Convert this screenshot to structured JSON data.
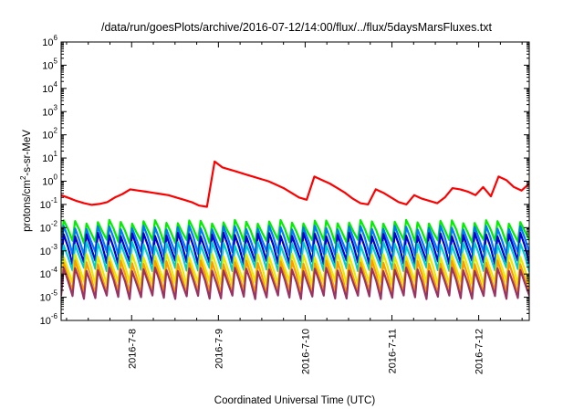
{
  "chart_data": {
    "type": "line",
    "title": "/data/run/goesPlots/archive/2016-07-12/14:00/flux/../flux/5daysMarsFluxes.txt",
    "xlabel": "Coordinated Universal Time (UTC)",
    "ylabel": {
      "pre": "protons/cm",
      "sup": "2",
      "post": "-s-sr-MeV"
    },
    "y_scale": "log",
    "ylim": [
      1e-06,
      1000000.0
    ],
    "y_ticks": [
      {
        "value": 1e-06,
        "base": "10",
        "exp": "-6"
      },
      {
        "value": 1e-05,
        "base": "10",
        "exp": "-5"
      },
      {
        "value": 0.0001,
        "base": "10",
        "exp": "-4"
      },
      {
        "value": 0.001,
        "base": "10",
        "exp": "-3"
      },
      {
        "value": 0.01,
        "base": "10",
        "exp": "-2"
      },
      {
        "value": 0.1,
        "base": "10",
        "exp": "-1"
      },
      {
        "value": 1.0,
        "base": "10",
        "exp": "0"
      },
      {
        "value": 10.0,
        "base": "10",
        "exp": "1"
      },
      {
        "value": 100.0,
        "base": "10",
        "exp": "2"
      },
      {
        "value": 1000.0,
        "base": "10",
        "exp": "3"
      },
      {
        "value": 10000.0,
        "base": "10",
        "exp": "4"
      },
      {
        "value": 100000.0,
        "base": "10",
        "exp": "5"
      },
      {
        "value": 1000000.0,
        "base": "10",
        "exp": "6"
      }
    ],
    "x_range_days": [
      "2016-07-07 04:30",
      "2016-07-12 14:00"
    ],
    "x_ticks": [
      "2016-7-8",
      "2016-7-9",
      "2016-7-10",
      "2016-7-11",
      "2016-7-12"
    ],
    "grid": false,
    "series": [
      {
        "color": "#ff0000",
        "values_log10": [
          -0.6,
          -0.72,
          -0.85,
          -0.95,
          -1.02,
          -0.98,
          -0.9,
          -0.7,
          -0.55,
          -0.35,
          -0.4,
          -0.45,
          -0.5,
          -0.55,
          -0.6,
          -0.7,
          -0.8,
          -0.9,
          -1.05,
          -1.1,
          0.85,
          0.6,
          0.5,
          0.4,
          0.3,
          0.2,
          0.1,
          0.0,
          -0.15,
          -0.3,
          -0.5,
          -0.7,
          -0.8,
          0.2,
          0.05,
          -0.1,
          -0.3,
          -0.5,
          -0.75,
          -0.95,
          -1.0,
          -0.35,
          -0.5,
          -0.7,
          -0.9,
          -1.0,
          -0.6,
          -0.75,
          -0.85,
          -0.95,
          -0.7,
          -0.3,
          -0.35,
          -0.45,
          -0.6,
          -0.25,
          -0.65,
          0.2,
          0.05,
          -0.25,
          -0.4,
          -0.1
        ]
      },
      {
        "color": "#00ee00",
        "sawtooth": {
          "upper": -1.75,
          "lower": -2.6,
          "teeth": 41
        }
      },
      {
        "color": "#0077ff",
        "sawtooth": {
          "upper": -2.0,
          "lower": -3.1,
          "teeth": 41
        }
      },
      {
        "color": "#0000cc",
        "sawtooth": {
          "upper": -2.3,
          "lower": -3.5,
          "teeth": 41
        }
      },
      {
        "color": "#00cccc",
        "sawtooth": {
          "upper": -2.7,
          "lower": -3.8,
          "teeth": 41
        }
      },
      {
        "color": "#e8e800",
        "sawtooth": {
          "upper": -3.2,
          "lower": -4.4,
          "teeth": 41
        }
      },
      {
        "color": "#ff9900",
        "sawtooth": {
          "upper": -3.5,
          "lower": -4.8,
          "teeth": 41
        }
      },
      {
        "color": "#993366",
        "sawtooth": {
          "upper": -3.8,
          "lower": -5.0,
          "teeth": 41
        }
      }
    ]
  }
}
